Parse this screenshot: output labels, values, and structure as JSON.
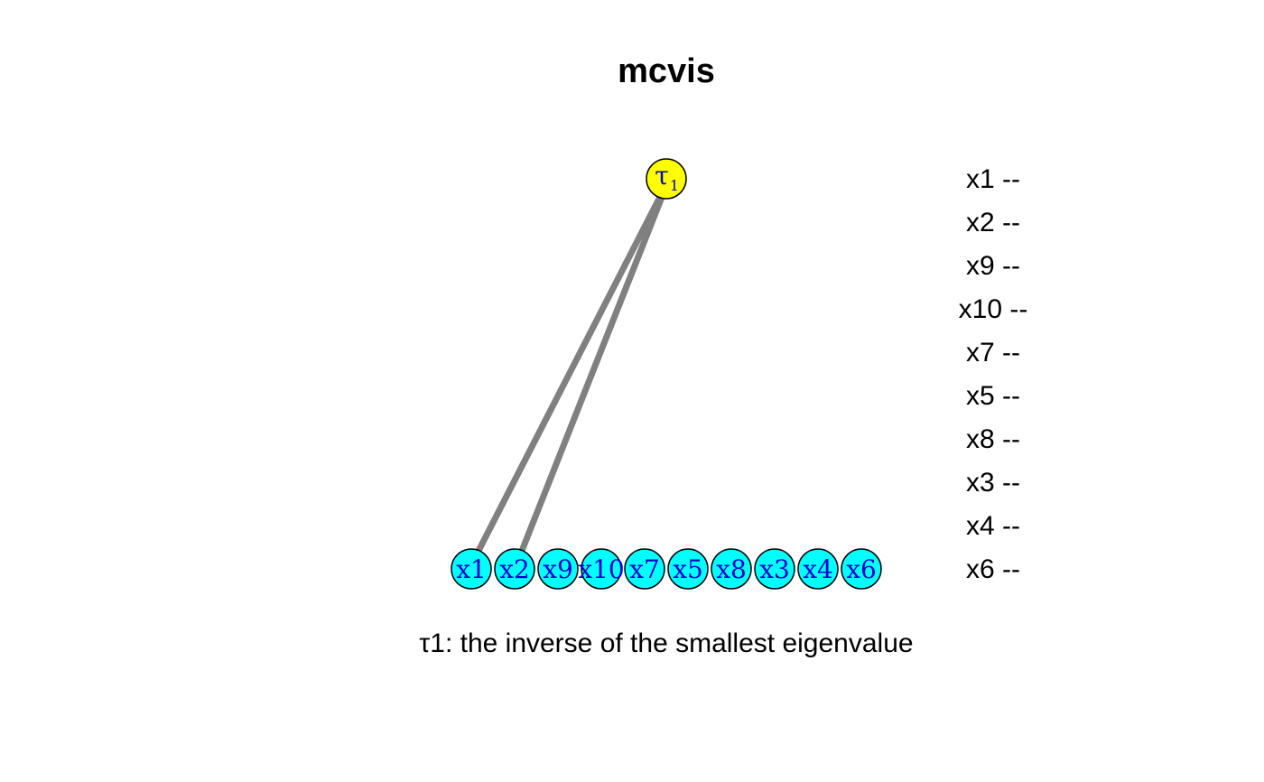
{
  "title": "mcvis",
  "tau_node": {
    "symbol": "τ",
    "subscript": "1",
    "fill": "#FFFF00"
  },
  "variables": [
    "x1",
    "x2",
    "x9",
    "x10",
    "x7",
    "x5",
    "x8",
    "x3",
    "x4",
    "x6"
  ],
  "variable_fill": "#00FFFF",
  "variable_text_color": "#0000CC",
  "edges": [
    {
      "from": "tau1",
      "to": "x1"
    },
    {
      "from": "tau1",
      "to": "x2"
    }
  ],
  "edge_color": "#808080",
  "legend": [
    "x1 --",
    "x2 --",
    "x9 --",
    "x10 --",
    "x7 --",
    "x5 --",
    "x8 --",
    "x3 --",
    "x4 --",
    "x6 --"
  ],
  "caption": "τ1: the inverse of the smallest eigenvalue"
}
